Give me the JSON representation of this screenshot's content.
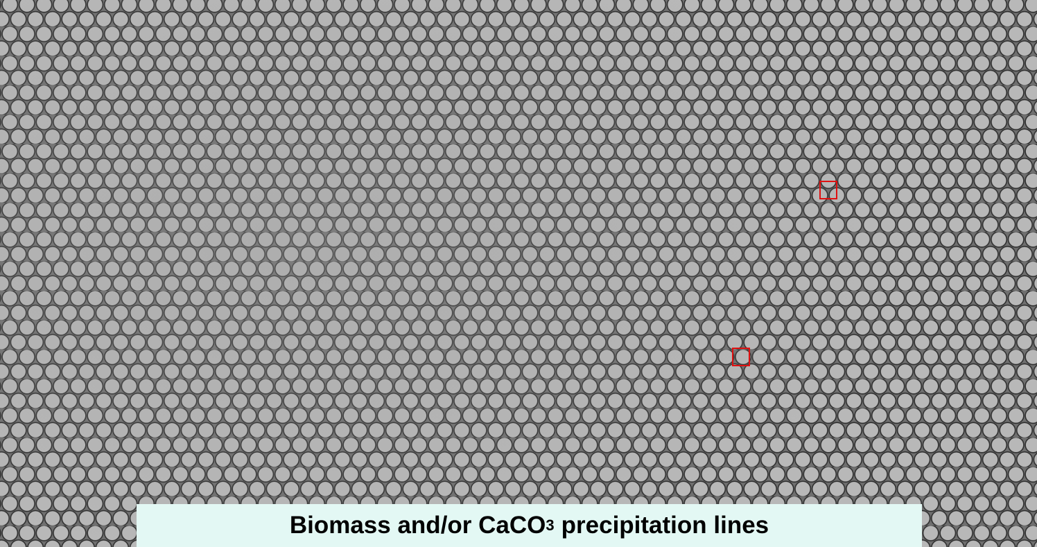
{
  "caption": {
    "text": "Biomass and/or CaCO",
    "subscript": "3",
    "text_after": "precipitation lines"
  }
}
